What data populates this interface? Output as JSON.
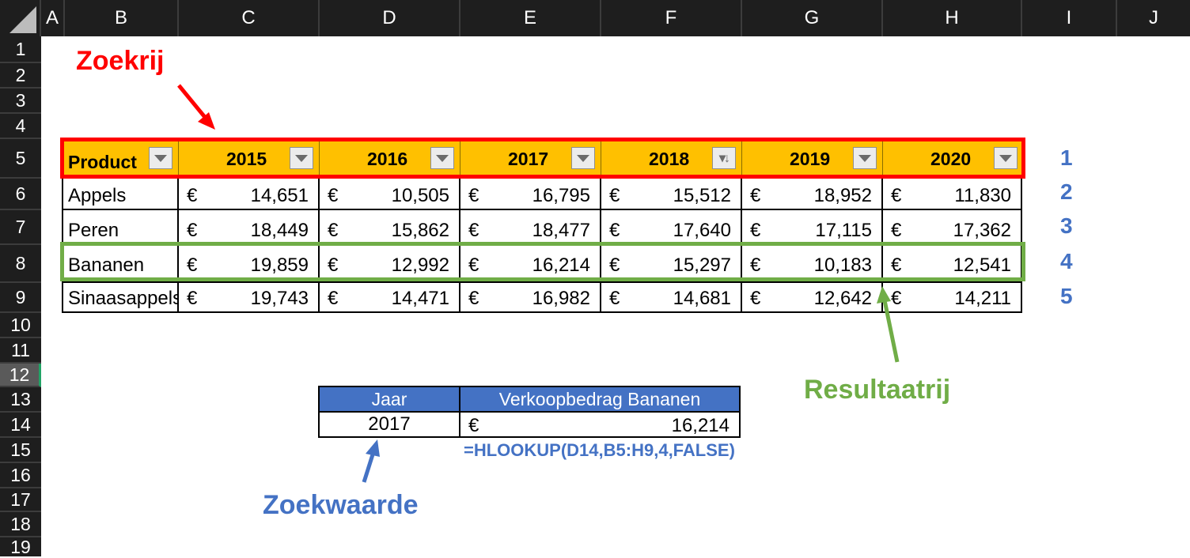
{
  "columns": [
    "A",
    "B",
    "C",
    "D",
    "E",
    "F",
    "G",
    "H",
    "I",
    "J"
  ],
  "rows": [
    "1",
    "2",
    "3",
    "4",
    "5",
    "6",
    "7",
    "8",
    "9",
    "10",
    "11",
    "12",
    "13",
    "14",
    "15",
    "16",
    "17",
    "18",
    "19"
  ],
  "selected_row": "12",
  "table": {
    "product_header": "Product",
    "years": [
      "2015",
      "2016",
      "2017",
      "2018",
      "2019",
      "2020"
    ],
    "currency": "€",
    "rows": [
      {
        "product": "Appels",
        "values": [
          "14,651",
          "10,505",
          "16,795",
          "15,512",
          "18,952",
          "11,830"
        ]
      },
      {
        "product": "Peren",
        "values": [
          "18,449",
          "15,862",
          "18,477",
          "17,640",
          "17,115",
          "17,362"
        ]
      },
      {
        "product": "Bananen",
        "values": [
          "19,859",
          "12,992",
          "16,214",
          "15,297",
          "10,183",
          "12,541"
        ]
      },
      {
        "product": "Sinaasappels",
        "values": [
          "19,743",
          "14,471",
          "16,982",
          "14,681",
          "12,642",
          "14,211"
        ]
      }
    ]
  },
  "row_indexes": [
    "1",
    "2",
    "3",
    "4",
    "5"
  ],
  "annotations": {
    "zoekrij": "Zoekrij",
    "resultaatrij": "Resultaatrij",
    "zoekwaarde": "Zoekwaarde",
    "formula": "=HLOOKUP(D14,B5:H9,4,FALSE)"
  },
  "lookup": {
    "year_header": "Jaar",
    "amount_header": "Verkoopbedrag Bananen",
    "year_value": "2017",
    "currency": "€",
    "amount_value": "16,214"
  },
  "colors": {
    "header_fill": "#ffc000",
    "red_box": "#ff0000",
    "green_box": "#70ad47",
    "blue_text": "#4472c4"
  }
}
